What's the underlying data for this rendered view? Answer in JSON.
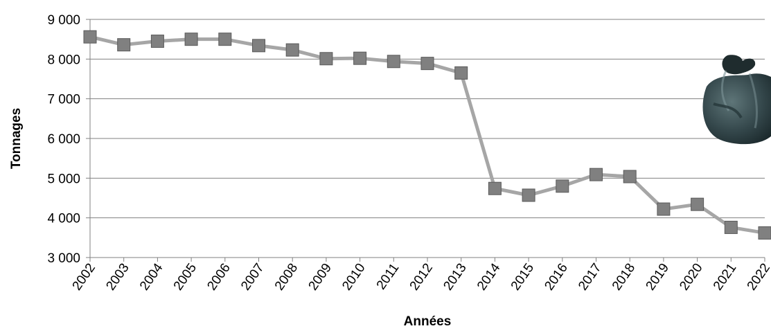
{
  "chart_data": {
    "type": "line",
    "title": "",
    "xlabel": "Années",
    "ylabel": "Tonnages",
    "ylim": [
      3000,
      9000
    ],
    "y_ticks": [
      3000,
      4000,
      5000,
      6000,
      7000,
      8000,
      9000
    ],
    "y_tick_labels": [
      "3 000",
      "4 000",
      "5 000",
      "6 000",
      "7 000",
      "8 000",
      "9 000"
    ],
    "grid": "horizontal",
    "categories": [
      "2002",
      "2003",
      "2004",
      "2005",
      "2006",
      "2007",
      "2008",
      "2009",
      "2010",
      "2011",
      "2012",
      "2013",
      "2014",
      "2015",
      "2016",
      "2017",
      "2018",
      "2019",
      "2020",
      "2021",
      "2022"
    ],
    "series": [
      {
        "values": [
          8560,
          8360,
          8450,
          8500,
          8500,
          8340,
          8230,
          8010,
          8020,
          7940,
          7890,
          7650,
          4740,
          4570,
          4800,
          5090,
          5040,
          4220,
          4340,
          3760,
          3620
        ],
        "color": "#a6a6a6",
        "marker_color": "#808080"
      }
    ],
    "colors": {
      "grid": "#808080",
      "axis": "#808080"
    },
    "decoration": "garbage-bag-icon"
  }
}
